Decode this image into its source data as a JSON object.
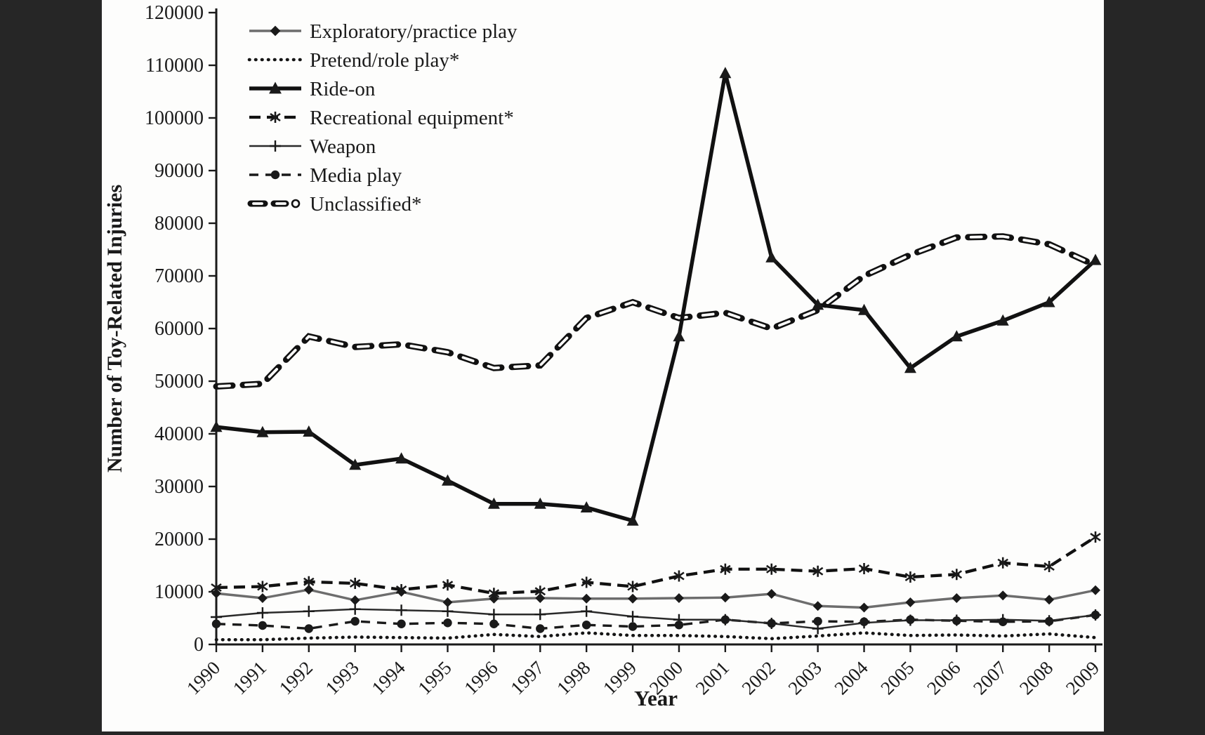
{
  "figure": {
    "page_background": "#262626",
    "figure_background": "#fdfdfc",
    "ink_color": "#1a1a1a"
  },
  "chart_data": {
    "type": "line",
    "title": "",
    "xlabel": "Year",
    "ylabel": "Number of Toy-Related Injuries",
    "x": [
      1990,
      1991,
      1992,
      1993,
      1994,
      1995,
      1996,
      1997,
      1998,
      1999,
      2000,
      2001,
      2002,
      2003,
      2004,
      2005,
      2006,
      2007,
      2008,
      2009
    ],
    "ylim": [
      0,
      120000
    ],
    "ytick_step": 10000,
    "grid": false,
    "legend_position": "top-left-inside",
    "series": [
      {
        "name": "Exploratory/practice play",
        "marker": "diamond",
        "line": "solid-thin-gray",
        "values": [
          9700,
          8800,
          10400,
          8400,
          10000,
          8000,
          8700,
          8800,
          8700,
          8700,
          8800,
          8900,
          9600,
          7300,
          7000,
          8000,
          8800,
          9300,
          8500,
          10300
        ]
      },
      {
        "name": "Pretend/role play*",
        "marker": "none",
        "line": "dotted",
        "values": [
          900,
          900,
          1200,
          1400,
          1300,
          1200,
          1900,
          1500,
          2200,
          1700,
          1700,
          1500,
          1100,
          1600,
          2200,
          1700,
          1800,
          1600,
          2000,
          1300
        ]
      },
      {
        "name": "Ride-on",
        "marker": "triangle",
        "line": "solid-thick",
        "values": [
          41300,
          40300,
          40400,
          34100,
          35300,
          31100,
          26700,
          26700,
          26000,
          23500,
          58500,
          108500,
          73500,
          64500,
          63500,
          52500,
          58500,
          61500,
          65000,
          73000
        ]
      },
      {
        "name": "Recreational equipment*",
        "marker": "asterisk",
        "line": "dashed",
        "values": [
          10800,
          11000,
          11900,
          11600,
          10400,
          11300,
          9700,
          10100,
          11800,
          11000,
          13000,
          14300,
          14300,
          13900,
          14400,
          12800,
          13300,
          15500,
          14800,
          20400
        ]
      },
      {
        "name": "Weapon",
        "marker": "plus",
        "line": "solid-thin",
        "values": [
          5200,
          6000,
          6300,
          6700,
          6500,
          6300,
          5700,
          5700,
          6300,
          5300,
          4700,
          4700,
          4000,
          3000,
          4100,
          4600,
          4600,
          4700,
          4500,
          5600
        ]
      },
      {
        "name": "Media play",
        "marker": "circle",
        "line": "dashed-fine",
        "values": [
          3900,
          3600,
          3000,
          4400,
          3900,
          4100,
          3900,
          3000,
          3700,
          3400,
          3700,
          4700,
          4000,
          4400,
          4300,
          4700,
          4500,
          4300,
          4400,
          5600
        ]
      },
      {
        "name": "Unclassified*",
        "marker": "none",
        "line": "capsule-dashed",
        "values": [
          49000,
          49500,
          58500,
          56500,
          57000,
          55500,
          52500,
          53000,
          62000,
          65000,
          62000,
          63000,
          60000,
          63500,
          70000,
          74000,
          77300,
          77500,
          76000,
          72000
        ]
      }
    ]
  }
}
